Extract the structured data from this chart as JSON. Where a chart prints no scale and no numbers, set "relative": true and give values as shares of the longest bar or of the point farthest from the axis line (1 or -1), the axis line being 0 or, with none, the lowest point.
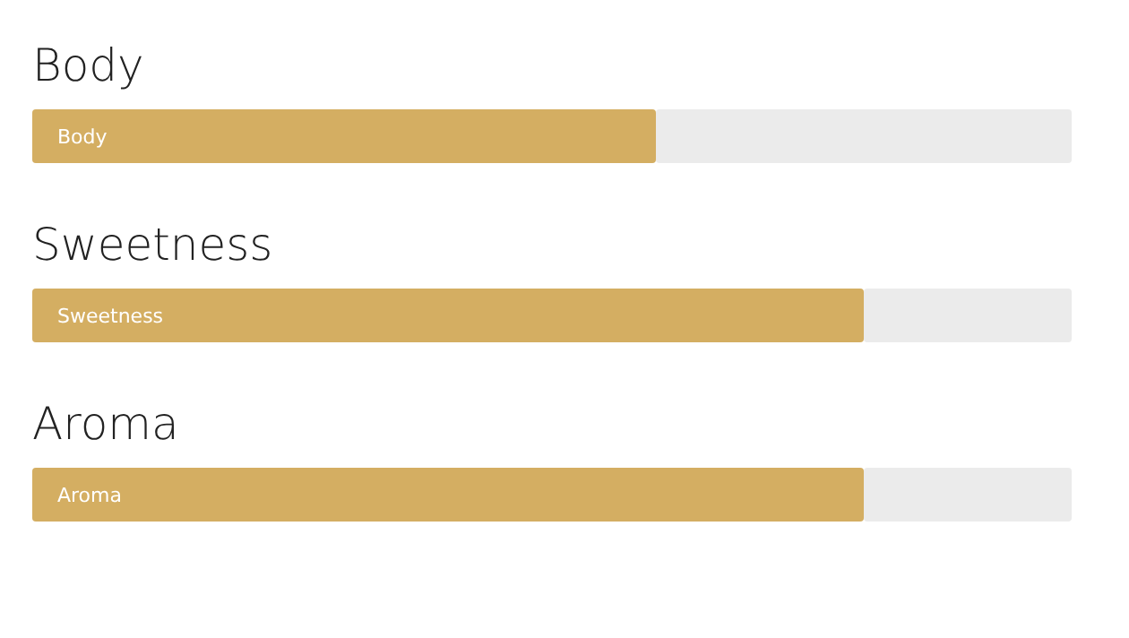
{
  "chart_data": {
    "type": "bar",
    "orientation": "horizontal",
    "stacked": true,
    "relative": true,
    "categories": [
      "Body",
      "Sweetness",
      "Aroma"
    ],
    "series": [
      {
        "color": "#d4ae62",
        "values": [
          0.6,
          0.8,
          0.8
        ]
      },
      {
        "color": "#ebebeb",
        "values": [
          0.4,
          0.2,
          0.2
        ]
      }
    ]
  }
}
